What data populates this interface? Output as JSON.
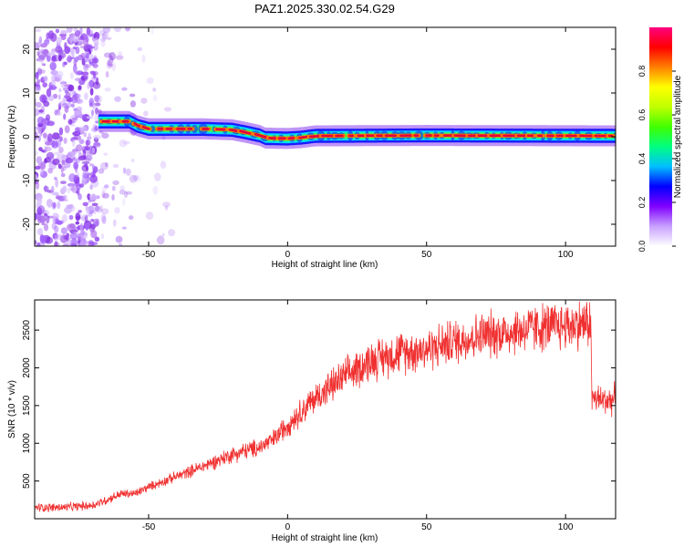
{
  "title": "PAZ1.2025.330.02.54.G29",
  "chart_data": [
    {
      "type": "heatmap",
      "xlabel": "Height of straight line (km)",
      "ylabel": "Frequency (Hz)",
      "xlim": [
        -91,
        118
      ],
      "ylim": [
        -25,
        25
      ],
      "xticks": [
        -50,
        0,
        50,
        100
      ],
      "yticks": [
        -20,
        -10,
        0,
        10,
        20
      ],
      "colorbar": {
        "label": "Normalized spectral amplitude",
        "range": [
          0,
          1
        ],
        "ticks": [
          "0.0",
          "0.2",
          "0.4",
          "0.6",
          "0.8"
        ],
        "colors": [
          "#ffffff",
          "#c8a0ff",
          "#8000ff",
          "#0000ff",
          "#00c0ff",
          "#00ff80",
          "#40ff00",
          "#c0ff00",
          "#ffff00",
          "#ff8000",
          "#ff0000",
          "#ff0080"
        ]
      },
      "ridge": {
        "x": [
          -68,
          -57,
          -54,
          -50,
          -30,
          -20,
          -15,
          -10,
          -8,
          0,
          5,
          10,
          50,
          118
        ],
        "frequency": [
          3.5,
          3.5,
          2.5,
          1.8,
          1.8,
          1.6,
          1.0,
          0.3,
          -0.3,
          -0.4,
          -0.2,
          0.2,
          0.3,
          0.2
        ]
      },
      "noise_region_x": [
        -91,
        -68
      ]
    },
    {
      "type": "line",
      "xlabel": "Height of straight line (km)",
      "ylabel": "SNR (10 * v/v)",
      "xlim": [
        -91,
        118
      ],
      "ylim": [
        0,
        2900
      ],
      "xticks": [
        -50,
        0,
        50,
        100
      ],
      "yticks": [
        500,
        1000,
        1500,
        2000,
        2500
      ],
      "color": "#f03030",
      "series": [
        {
          "name": "SNR",
          "x": [
            -91,
            -80,
            -70,
            -65,
            -60,
            -55,
            -50,
            -40,
            -30,
            -20,
            -10,
            -5,
            0,
            10,
            20,
            30,
            40,
            50,
            60,
            70,
            80,
            90,
            100,
            105,
            109,
            109.5,
            113,
            118
          ],
          "y": [
            150,
            150,
            180,
            250,
            330,
            330,
            420,
            560,
            700,
            850,
            950,
            1050,
            1250,
            1600,
            1870,
            2100,
            2200,
            2250,
            2350,
            2430,
            2480,
            2530,
            2560,
            2580,
            2600,
            1600,
            1570,
            1580
          ]
        }
      ]
    }
  ]
}
